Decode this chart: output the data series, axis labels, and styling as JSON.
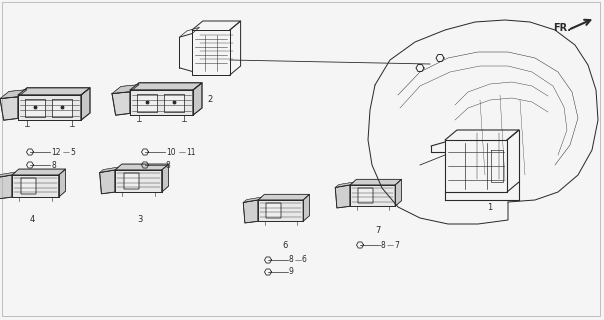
{
  "bg_color": "#f5f5f5",
  "line_color": "#2a2a2a",
  "fig_width": 6.04,
  "fig_height": 3.2,
  "dpi": 100
}
